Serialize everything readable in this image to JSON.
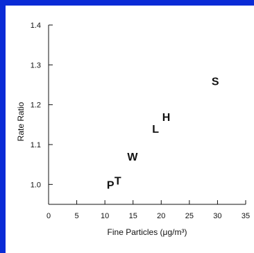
{
  "chart_data": {
    "type": "scatter",
    "title": "",
    "xlabel": "Fine Particles (μg/m³)",
    "ylabel": "Rate Ratio",
    "xlim": [
      0,
      35
    ],
    "ylim": [
      0.95,
      1.4
    ],
    "xticks": [
      0,
      5,
      10,
      15,
      20,
      25,
      30,
      35
    ],
    "yticks": [
      1.0,
      1.1,
      1.2,
      1.3,
      1.4
    ],
    "xtick_labels": [
      "0",
      "5",
      "10",
      "15",
      "20",
      "25",
      "30",
      "35"
    ],
    "ytick_labels": [
      "1.0",
      "1.1",
      "1.2",
      "1.3",
      "1.4"
    ],
    "grid": false,
    "points": [
      {
        "label": "P",
        "x": 11.0,
        "y": 1.0
      },
      {
        "label": "T",
        "x": 12.3,
        "y": 1.01
      },
      {
        "label": "W",
        "x": 14.9,
        "y": 1.07
      },
      {
        "label": "L",
        "x": 19.0,
        "y": 1.14
      },
      {
        "label": "H",
        "x": 20.9,
        "y": 1.17
      },
      {
        "label": "S",
        "x": 29.6,
        "y": 1.26
      }
    ]
  }
}
